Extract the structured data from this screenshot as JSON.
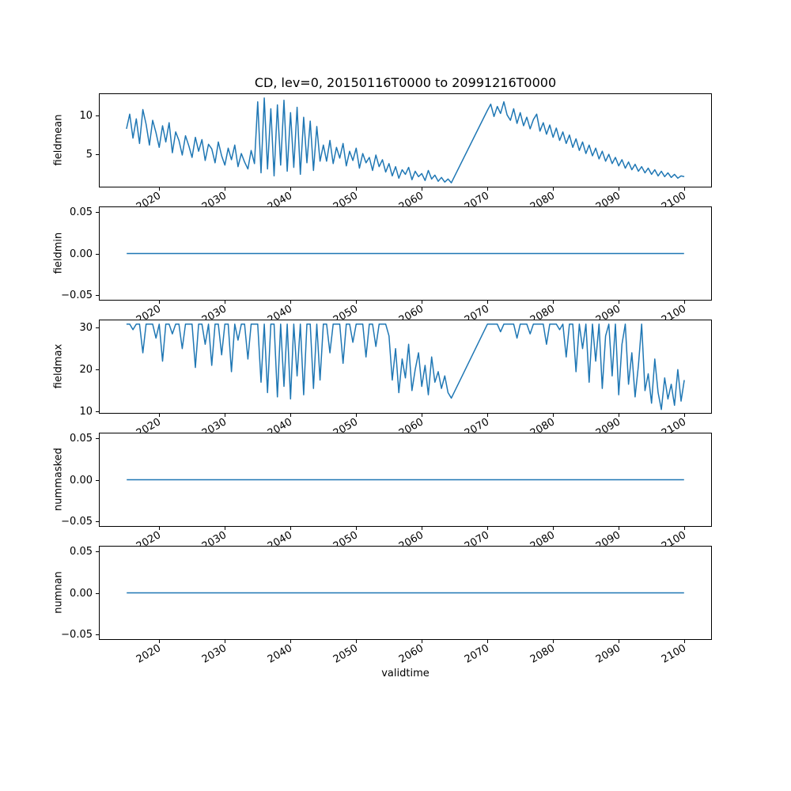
{
  "figure": {
    "title": "CD, lev=0, 20150116T0000 to 20991216T0000",
    "xlabel": "validtime",
    "line_color": "#1f77b4",
    "background": "#ffffff"
  },
  "xaxis": {
    "ticks": [
      2020,
      2030,
      2040,
      2050,
      2060,
      2070,
      2080,
      2090,
      2100
    ],
    "labels": [
      "2020",
      "2030",
      "2040",
      "2050",
      "2060",
      "2070",
      "2080",
      "2090",
      "2100"
    ],
    "xlim": [
      2010.8,
      2104.2
    ]
  },
  "chart_data": [
    {
      "type": "line",
      "name": "fieldmean",
      "ylabel": "fieldmean",
      "ylim": [
        0.7,
        12.9
      ],
      "yticks": [
        5,
        10
      ],
      "ytick_labels": [
        "5",
        "10"
      ],
      "segments": [
        {
          "x0": 2015.0,
          "dx": 0.5,
          "y": [
            8.3,
            10.2,
            7.1,
            9.6,
            6.4,
            10.8,
            8.9,
            6.2,
            9.4,
            7.8,
            5.9,
            8.7,
            6.6,
            9.1,
            5.2,
            7.9,
            6.8,
            4.9,
            7.4,
            6.1,
            4.6,
            7.2,
            5.4,
            6.9,
            4.2,
            6.3,
            5.7,
            3.9,
            6.6,
            4.8,
            3.6,
            5.8,
            4.3,
            6.2,
            3.4,
            5.1,
            4.0,
            3.1,
            5.5,
            3.8,
            11.8,
            2.6,
            12.3,
            3.1,
            10.9,
            2.2,
            11.4,
            3.6,
            12.0,
            2.8,
            10.4,
            3.3,
            11.1,
            2.4,
            9.8,
            3.9,
            9.3,
            2.9,
            8.6,
            4.1,
            6.2,
            4.1,
            6.8,
            3.8,
            5.9,
            4.5,
            6.4,
            3.5,
            5.4,
            4.2,
            5.8,
            3.2,
            5.1,
            3.9,
            4.6,
            2.9,
            4.9,
            3.4,
            4.3,
            2.7,
            3.8,
            2.2,
            3.4,
            1.9,
            3.0,
            2.4,
            3.3,
            1.7,
            2.8,
            2.1,
            2.5,
            1.6,
            2.9,
            1.8,
            2.3,
            1.5,
            2.0,
            1.4,
            1.8,
            1.3
          ]
        },
        {
          "x0": 2070.0,
          "dx": 0.5,
          "y": [
            10.7,
            11.5,
            9.9,
            11.2,
            10.3,
            11.8,
            10.1,
            9.4,
            10.9,
            9.0,
            10.4,
            8.7,
            9.8,
            8.3,
            9.5,
            10.2,
            8.0,
            9.1,
            7.6,
            8.8,
            7.2,
            8.4,
            6.8,
            7.9,
            6.4,
            7.5,
            5.9,
            7.0,
            5.5,
            6.6,
            5.1,
            6.2,
            4.8,
            5.8,
            4.4,
            5.4,
            4.1,
            5.0,
            3.8,
            4.6,
            3.5,
            4.3,
            3.2,
            4.0,
            3.0,
            3.7,
            2.8,
            3.4,
            2.6,
            3.2,
            2.4,
            3.0,
            2.2,
            2.8,
            2.1,
            2.6,
            2.0,
            2.4,
            1.9,
            2.2,
            2.1
          ]
        }
      ]
    },
    {
      "type": "line",
      "name": "fieldmin",
      "ylabel": "fieldmin",
      "ylim": [
        -0.057,
        0.057
      ],
      "yticks": [
        -0.05,
        0.0,
        0.05
      ],
      "ytick_labels": [
        "−0.05",
        "0.00",
        "0.05"
      ],
      "segments": [
        {
          "x0": 2015.04,
          "dx": 84.92,
          "y": [
            0.0,
            0.0
          ]
        }
      ]
    },
    {
      "type": "line",
      "name": "fieldmax",
      "ylabel": "fieldmax",
      "ylim": [
        9.5,
        31.9
      ],
      "yticks": [
        10,
        20,
        30
      ],
      "ytick_labels": [
        "10",
        "20",
        "30"
      ],
      "segments": [
        {
          "x0": 2015.0,
          "dx": 0.5,
          "y": [
            30.8,
            30.8,
            29.5,
            30.8,
            30.8,
            24.0,
            30.8,
            30.8,
            30.8,
            27.5,
            30.8,
            22.0,
            30.8,
            30.8,
            28.5,
            30.8,
            30.8,
            25.0,
            30.8,
            30.8,
            30.8,
            20.5,
            30.8,
            30.8,
            26.0,
            30.8,
            21.0,
            30.8,
            30.8,
            23.5,
            30.8,
            30.8,
            19.5,
            30.8,
            27.0,
            30.8,
            30.8,
            22.5,
            30.8,
            30.8,
            30.8,
            17.0,
            30.8,
            14.5,
            30.8,
            30.8,
            13.5,
            30.8,
            16.0,
            30.8,
            13.0,
            30.8,
            18.5,
            30.8,
            14.0,
            30.8,
            30.8,
            15.5,
            30.8,
            17.5,
            30.8,
            30.8,
            24.0,
            30.8,
            30.8,
            30.8,
            21.5,
            30.8,
            30.8,
            26.5,
            30.8,
            30.8,
            30.8,
            23.0,
            30.8,
            30.8,
            25.5,
            30.8,
            30.8,
            30.8,
            28.0,
            17.5,
            25.0,
            14.5,
            22.5,
            18.0,
            26.0,
            15.0,
            20.0,
            24.0,
            16.0,
            21.0,
            14.0,
            23.0,
            17.0,
            19.5,
            15.5,
            18.5,
            14.5,
            13.2
          ]
        },
        {
          "x0": 2070.0,
          "dx": 0.5,
          "y": [
            30.8,
            30.8,
            30.8,
            30.8,
            29.0,
            30.8,
            30.8,
            30.8,
            30.8,
            27.5,
            30.8,
            30.8,
            30.8,
            28.5,
            30.8,
            30.8,
            30.8,
            30.8,
            26.0,
            30.8,
            30.8,
            30.8,
            29.5,
            30.8,
            23.0,
            30.8,
            30.8,
            19.5,
            30.8,
            25.0,
            30.8,
            17.0,
            30.8,
            22.0,
            30.8,
            15.5,
            28.0,
            30.8,
            18.5,
            30.8,
            14.0,
            26.0,
            30.8,
            16.5,
            24.0,
            13.5,
            21.0,
            30.8,
            15.0,
            19.0,
            12.0,
            22.5,
            14.5,
            10.5,
            18.0,
            13.0,
            16.5,
            11.5,
            20.0,
            12.5,
            17.5
          ]
        }
      ]
    },
    {
      "type": "line",
      "name": "nummasked",
      "ylabel": "nummasked",
      "ylim": [
        -0.057,
        0.057
      ],
      "yticks": [
        -0.05,
        0.0,
        0.05
      ],
      "ytick_labels": [
        "−0.05",
        "0.00",
        "0.05"
      ],
      "segments": [
        {
          "x0": 2015.04,
          "dx": 84.92,
          "y": [
            0.0,
            0.0
          ]
        }
      ]
    },
    {
      "type": "line",
      "name": "numnan",
      "ylabel": "numnan",
      "ylim": [
        -0.057,
        0.057
      ],
      "yticks": [
        -0.05,
        0.0,
        0.05
      ],
      "ytick_labels": [
        "−0.05",
        "0.00",
        "0.05"
      ],
      "segments": [
        {
          "x0": 2015.04,
          "dx": 84.92,
          "y": [
            0.0,
            0.0
          ]
        }
      ]
    }
  ]
}
